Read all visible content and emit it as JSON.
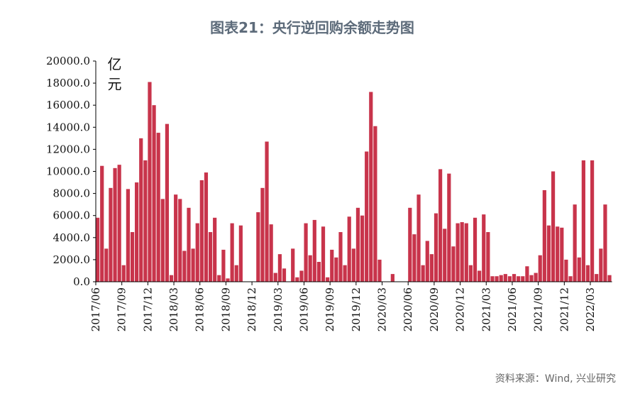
{
  "chart_data": {
    "type": "bar",
    "title": "图表21：央行逆回购余额走势图",
    "y_label": "亿元",
    "source": "资料来源：Wind, 兴业研究",
    "color": "#c8344b",
    "categories": [
      "2017/06",
      null,
      null,
      null,
      null,
      null,
      "2017/09",
      null,
      null,
      null,
      null,
      null,
      "2017/12",
      null,
      null,
      null,
      null,
      null,
      "2018/03",
      null,
      null,
      null,
      null,
      null,
      "2018/06",
      null,
      null,
      null,
      null,
      null,
      "2018/09",
      null,
      null,
      null,
      null,
      null,
      "2018/12",
      null,
      null,
      null,
      null,
      null,
      "2019/03",
      null,
      null,
      null,
      null,
      null,
      "2019/06",
      null,
      null,
      null,
      null,
      null,
      "2019/09",
      null,
      null,
      null,
      null,
      null,
      "2019/12",
      null,
      null,
      null,
      null,
      null,
      "2020/03",
      null,
      null,
      null,
      null,
      null,
      "2020/06",
      null,
      null,
      null,
      null,
      null,
      "2020/09",
      null,
      null,
      null,
      null,
      null,
      "2020/12",
      null,
      null,
      null,
      null,
      null,
      "2021/03",
      null,
      null,
      null,
      null,
      null,
      "2021/06",
      null,
      null,
      null,
      null,
      null,
      "2021/09",
      null,
      null,
      null,
      null,
      null,
      "2021/12",
      null,
      null,
      null,
      null,
      null,
      "2022/03",
      null,
      null,
      null,
      null
    ],
    "values": [
      5800,
      10500,
      3000,
      8500,
      10300,
      10600,
      1500,
      8400,
      4500,
      9000,
      13000,
      11000,
      18100,
      16000,
      13500,
      7500,
      14300,
      600,
      7900,
      7500,
      2800,
      6700,
      3000,
      5300,
      9200,
      9900,
      4500,
      5800,
      600,
      2900,
      300,
      5300,
      1500,
      5100,
      0,
      0,
      0,
      6300,
      8500,
      12700,
      5200,
      800,
      2500,
      1200,
      0,
      3000,
      400,
      1000,
      5300,
      2400,
      5600,
      1800,
      5000,
      400,
      2900,
      2200,
      4500,
      1500,
      5900,
      3000,
      6700,
      6000,
      11800,
      17200,
      14100,
      2000,
      0,
      0,
      700,
      0,
      0,
      0,
      6700,
      4300,
      7900,
      1500,
      3700,
      2500,
      6200,
      10200,
      4800,
      9800,
      3200,
      5300,
      5400,
      5300,
      1500,
      5800,
      1000,
      6100,
      4500,
      500,
      500,
      600,
      700,
      500,
      700,
      500,
      500,
      1400,
      600,
      800,
      2400,
      8300,
      5100,
      10000,
      5000,
      4900,
      2000,
      500,
      7000,
      2200,
      11000,
      1500,
      11000,
      700,
      3000,
      7000,
      600
    ],
    "ylim": [
      0,
      20000
    ],
    "yticks": [
      {
        "value": 0,
        "label": "0.0"
      },
      {
        "value": 2000,
        "label": "2000.0"
      },
      {
        "value": 4000,
        "label": "4000.0"
      },
      {
        "value": 6000,
        "label": "6000.0"
      },
      {
        "value": 8000,
        "label": "8000.0"
      },
      {
        "value": 10000,
        "label": "10000.0"
      },
      {
        "value": 12000,
        "label": "12000.0"
      },
      {
        "value": 14000,
        "label": "14000.0"
      },
      {
        "value": 16000,
        "label": "16000.0"
      },
      {
        "value": 18000,
        "label": "18000.0"
      },
      {
        "value": 20000,
        "label": "20000.0"
      }
    ]
  }
}
